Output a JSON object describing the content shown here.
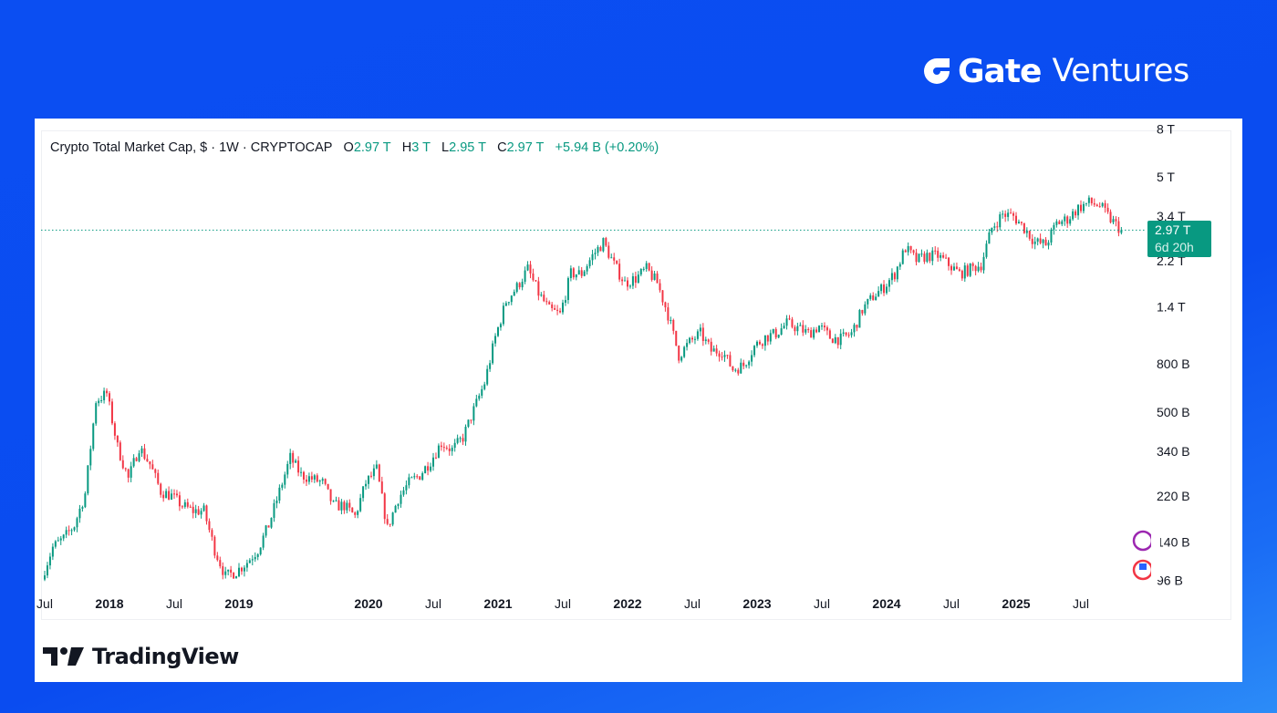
{
  "brand": {
    "name": "Gate",
    "suffix": "Ventures"
  },
  "legend": {
    "title": "Crypto Total Market Cap, $ · 1W · CRYPTOCAP",
    "o_label": "O",
    "o_value": "2.97 T",
    "h_label": "H",
    "h_value": "3 T",
    "l_label": "L",
    "l_value": "2.95 T",
    "c_label": "C",
    "c_value": "2.97 T",
    "change": "+5.94 B (+0.20%)"
  },
  "price_label": {
    "value": "2.97 T",
    "countdown": "6d 20h"
  },
  "footer": {
    "logo_text": "TradingView"
  },
  "colors": {
    "up": "#089981",
    "down": "#f23645",
    "background": "#0b4ef2"
  },
  "chart_data": {
    "type": "candlestick",
    "title": "Crypto Total Market Cap, $ · 1W · CRYPTOCAP",
    "y_scale": "log",
    "y_unit": "billion USD",
    "y_ticks": [
      {
        "label": "8 T",
        "value": 8000
      },
      {
        "label": "5 T",
        "value": 5000
      },
      {
        "label": "3.4 T",
        "value": 3400
      },
      {
        "label": "2.2 T",
        "value": 2200
      },
      {
        "label": "1.4 T",
        "value": 1400
      },
      {
        "label": "800 B",
        "value": 800
      },
      {
        "label": "500 B",
        "value": 500
      },
      {
        "label": "340 B",
        "value": 340
      },
      {
        "label": "220 B",
        "value": 220
      },
      {
        "label": "140 B",
        "value": 140
      },
      {
        "label": "96 B",
        "value": 96
      }
    ],
    "x_ticks": [
      {
        "label": "Jul",
        "date": "2017-07"
      },
      {
        "label": "2018",
        "date": "2018-01"
      },
      {
        "label": "Jul",
        "date": "2018-07"
      },
      {
        "label": "2019",
        "date": "2019-01"
      },
      {
        "label": "2020",
        "date": "2020-01"
      },
      {
        "label": "Jul",
        "date": "2020-07"
      },
      {
        "label": "2021",
        "date": "2021-01"
      },
      {
        "label": "Jul",
        "date": "2021-07"
      },
      {
        "label": "2022",
        "date": "2022-01"
      },
      {
        "label": "Jul",
        "date": "2022-07"
      },
      {
        "label": "2023",
        "date": "2023-01"
      },
      {
        "label": "Jul",
        "date": "2023-07"
      },
      {
        "label": "2024",
        "date": "2024-01"
      },
      {
        "label": "Jul",
        "date": "2024-07"
      },
      {
        "label": "2025",
        "date": "2025-01"
      },
      {
        "label": "Jul",
        "date": "2025-07"
      }
    ],
    "last_price": 2970,
    "monthly_close_estimates": [
      [
        "2017-07",
        100
      ],
      [
        "2017-08",
        133
      ],
      [
        "2017-09",
        145
      ],
      [
        "2017-10",
        165
      ],
      [
        "2017-11",
        225
      ],
      [
        "2017-12",
        560
      ],
      [
        "2018-01",
        600
      ],
      [
        "2018-02",
        355
      ],
      [
        "2018-03",
        260
      ],
      [
        "2018-04",
        355
      ],
      [
        "2018-05",
        300
      ],
      [
        "2018-06",
        230
      ],
      [
        "2018-07",
        220
      ],
      [
        "2018-08",
        200
      ],
      [
        "2018-09",
        190
      ],
      [
        "2018-10",
        190
      ],
      [
        "2018-11",
        130
      ],
      [
        "2018-12",
        100
      ],
      [
        "2019-01",
        105
      ],
      [
        "2019-02",
        115
      ],
      [
        "2019-03",
        130
      ],
      [
        "2019-04",
        165
      ],
      [
        "2019-05",
        230
      ],
      [
        "2019-06",
        320
      ],
      [
        "2019-07",
        270
      ],
      [
        "2019-08",
        260
      ],
      [
        "2019-09",
        250
      ],
      [
        "2019-10",
        200
      ],
      [
        "2019-11",
        200
      ],
      [
        "2019-12",
        180
      ],
      [
        "2020-01",
        250
      ],
      [
        "2020-02",
        285
      ],
      [
        "2020-03",
        160
      ],
      [
        "2020-04",
        215
      ],
      [
        "2020-05",
        250
      ],
      [
        "2020-06",
        270
      ],
      [
        "2020-07",
        310
      ],
      [
        "2020-08",
        370
      ],
      [
        "2020-09",
        345
      ],
      [
        "2020-10",
        390
      ],
      [
        "2020-11",
        510
      ],
      [
        "2020-12",
        665
      ],
      [
        "2021-01",
        1040
      ],
      [
        "2021-02",
        1480
      ],
      [
        "2021-03",
        1700
      ],
      [
        "2021-04",
        2030
      ],
      [
        "2021-05",
        1600
      ],
      [
        "2021-06",
        1360
      ],
      [
        "2021-07",
        1300
      ],
      [
        "2021-08",
        1940
      ],
      [
        "2021-09",
        1940
      ],
      [
        "2021-10",
        2310
      ],
      [
        "2021-11",
        2640
      ],
      [
        "2021-12",
        2120
      ],
      [
        "2022-01",
        1770
      ],
      [
        "2022-02",
        1850
      ],
      [
        "2022-03",
        2030
      ],
      [
        "2022-04",
        1770
      ],
      [
        "2022-05",
        1300
      ],
      [
        "2022-06",
        870
      ],
      [
        "2022-07",
        990
      ],
      [
        "2022-08",
        1080
      ],
      [
        "2022-09",
        910
      ],
      [
        "2022-10",
        910
      ],
      [
        "2022-11",
        760
      ],
      [
        "2022-12",
        790
      ],
      [
        "2023-01",
        950
      ],
      [
        "2023-02",
        1040
      ],
      [
        "2023-03",
        1080
      ],
      [
        "2023-04",
        1190
      ],
      [
        "2023-05",
        1140
      ],
      [
        "2023-06",
        1080
      ],
      [
        "2023-07",
        1160
      ],
      [
        "2023-08",
        1040
      ],
      [
        "2023-09",
        1020
      ],
      [
        "2023-10",
        1080
      ],
      [
        "2023-11",
        1360
      ],
      [
        "2023-12",
        1550
      ],
      [
        "2024-01",
        1700
      ],
      [
        "2024-02",
        1940
      ],
      [
        "2024-03",
        2490
      ],
      [
        "2024-04",
        2210
      ],
      [
        "2024-05",
        2310
      ],
      [
        "2024-06",
        2310
      ],
      [
        "2024-07",
        2120
      ],
      [
        "2024-08",
        1940
      ],
      [
        "2024-09",
        2030
      ],
      [
        "2024-10",
        2120
      ],
      [
        "2024-11",
        3030
      ],
      [
        "2024-12",
        3470
      ],
      [
        "2025-01",
        3400
      ],
      [
        "2025-02",
        3030
      ],
      [
        "2025-03",
        2640
      ],
      [
        "2025-04",
        2580
      ],
      [
        "2025-05",
        3170
      ],
      [
        "2025-06",
        3310
      ],
      [
        "2025-07",
        3690
      ],
      [
        "2025-08",
        3890
      ],
      [
        "2025-09",
        3780
      ],
      [
        "2025-10",
        3300
      ],
      [
        "2025-11",
        2970
      ]
    ]
  }
}
